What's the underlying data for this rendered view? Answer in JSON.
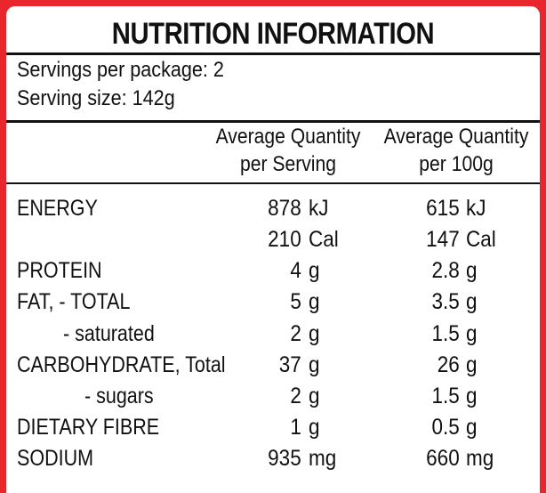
{
  "title": "NUTRITION INFORMATION",
  "servings_per_package": "Servings per package: 2",
  "serving_size": "Serving size: 142g",
  "columns": {
    "per_serving_line1": "Average Quantity",
    "per_serving_line2": "per Serving",
    "per_100g_line1": "Average Quantity",
    "per_100g_line2": "per 100g"
  },
  "rows": [
    {
      "label": "ENERGY",
      "serving": "878",
      "serving_unit": "kJ",
      "per100": "615",
      "per100_unit": "kJ"
    },
    {
      "label": "",
      "serving": "210",
      "serving_unit": "Cal",
      "per100": "147",
      "per100_unit": "Cal"
    },
    {
      "label": "PROTEIN",
      "serving": "4",
      "serving_unit": "g",
      "per100": "2.8",
      "per100_unit": "g"
    },
    {
      "label": "FAT, - TOTAL",
      "serving": "5",
      "serving_unit": "g",
      "per100": "3.5",
      "per100_unit": "g"
    },
    {
      "label": "- saturated",
      "serving": "2",
      "serving_unit": "g",
      "per100": "1.5",
      "per100_unit": "g"
    },
    {
      "label": "CARBOHYDRATE, Total",
      "serving": "37",
      "serving_unit": "g",
      "per100": "26",
      "per100_unit": "g"
    },
    {
      "label": "- sugars",
      "serving": "2",
      "serving_unit": "g",
      "per100": "1.5",
      "per100_unit": "g"
    },
    {
      "label": "DIETARY FIBRE",
      "serving": "1",
      "serving_unit": "g",
      "per100": "0.5",
      "per100_unit": "g"
    },
    {
      "label": "SODIUM",
      "serving": "935",
      "serving_unit": "mg",
      "per100": "660",
      "per100_unit": "mg"
    }
  ],
  "colors": {
    "border": "#e8262c",
    "text": "#111111",
    "background": "#ffffff"
  }
}
